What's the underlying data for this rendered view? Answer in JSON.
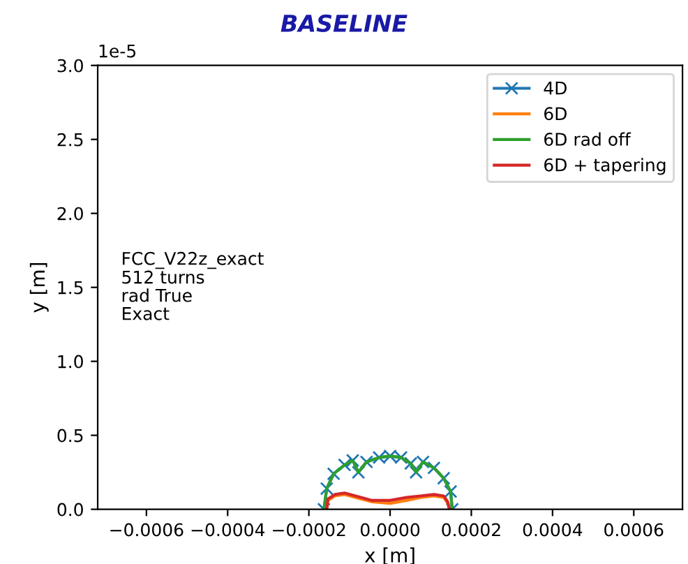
{
  "chart_data": {
    "type": "line",
    "title": "BASELINE",
    "xlabel": "x [m]",
    "ylabel": "y [m]",
    "annotations": [
      "FCC_V22z_exact\n512 turns\nrad True\nExact",
      "1e-5"
    ],
    "xlim": [
      -0.00072,
      0.00072
    ],
    "ylim": [
      0.0,
      3.0
    ],
    "xticks": [
      {
        "value": -0.0006,
        "label": "−0.0006"
      },
      {
        "value": -0.0004,
        "label": "−0.0004"
      },
      {
        "value": -0.0002,
        "label": "−0.0002"
      },
      {
        "value": 0,
        "label": "0.0000"
      },
      {
        "value": 0.0002,
        "label": "0.0002"
      },
      {
        "value": 0.0004,
        "label": "0.0004"
      },
      {
        "value": 0.0006,
        "label": "0.0006"
      }
    ],
    "yticks": [
      {
        "value": 0,
        "label": "0.0"
      },
      0.5,
      {
        "value": 1,
        "label": "1.0"
      },
      1.5,
      {
        "value": 2,
        "label": "2.0"
      },
      2.5,
      {
        "value": 3,
        "label": "3.0"
      }
    ],
    "legend": "top right",
    "grid": false,
    "series": [
      {
        "name": "4D",
        "color": "#1f77b4",
        "marker": "cross",
        "x": [
          -0.000163,
          -0.000156,
          -0.000139,
          -0.000112,
          -9.2e-05,
          -7.8e-05,
          -5.8e-05,
          -2.7e-05,
          0,
          2.7e-05,
          5.1e-05,
          6.4e-05,
          8.1e-05,
          0.000108,
          0.000132,
          0.000149,
          0.000153
        ],
        "values": [
          0,
          0.14,
          0.24,
          0.3,
          0.33,
          0.25,
          0.32,
          0.35,
          0.36,
          0.35,
          0.31,
          0.25,
          0.32,
          0.28,
          0.21,
          0.12,
          0
        ]
      },
      {
        "name": "6D",
        "color": "#ff7f0e",
        "x": [
          -0.000156,
          -0.000153,
          -0.000136,
          -0.000112,
          -8.5e-05,
          -4.4e-05,
          0,
          4.1e-05,
          7.5e-05,
          0.000108,
          0.000132,
          0.000142,
          0.000146
        ],
        "values": [
          0,
          0.06,
          0.09,
          0.1,
          0.08,
          0.05,
          0.04,
          0.06,
          0.08,
          0.09,
          0.08,
          0.04,
          0
        ]
      },
      {
        "name": "6D rad off",
        "color": "#2ca02c",
        "x": [
          -0.000163,
          -0.000156,
          -0.000139,
          -0.000112,
          -9.2e-05,
          -7.8e-05,
          -5.8e-05,
          -2.7e-05,
          0,
          2.7e-05,
          5.1e-05,
          6.4e-05,
          8.1e-05,
          0.000108,
          0.000132,
          0.000149,
          0.000153
        ],
        "values": [
          0,
          0.14,
          0.24,
          0.3,
          0.33,
          0.25,
          0.32,
          0.35,
          0.36,
          0.35,
          0.31,
          0.25,
          0.32,
          0.28,
          0.21,
          0.12,
          0
        ]
      },
      {
        "name": "6D + tapering",
        "color": "#d62728",
        "x": [
          -0.000156,
          -0.000153,
          -0.000136,
          -0.000112,
          -8.5e-05,
          -4.4e-05,
          0,
          4.1e-05,
          7.5e-05,
          0.000108,
          0.000132,
          0.000142,
          0.000146
        ],
        "values": [
          0,
          0.07,
          0.1,
          0.11,
          0.09,
          0.06,
          0.06,
          0.08,
          0.09,
          0.1,
          0.09,
          0.05,
          0
        ]
      }
    ]
  }
}
